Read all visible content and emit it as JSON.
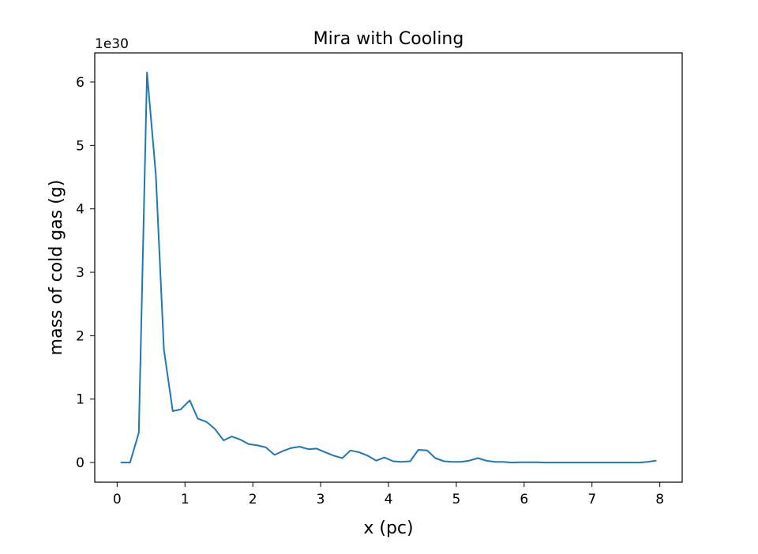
{
  "chart_data": {
    "type": "line",
    "title": "Mira with Cooling",
    "xlabel": "x (pc)",
    "ylabel": "mass of cold gas (g)",
    "y_offset_label": "1e30",
    "y_multiplier": 1e+30,
    "xlim": [
      -0.33,
      8.33
    ],
    "ylim": [
      -0.31,
      6.46
    ],
    "x_ticks": [
      0,
      1,
      2,
      3,
      4,
      5,
      6,
      7,
      8
    ],
    "x_tick_labels": [
      "0",
      "1",
      "2",
      "3",
      "4",
      "5",
      "6",
      "7",
      "8"
    ],
    "y_ticks": [
      0,
      1,
      2,
      3,
      4,
      5,
      6
    ],
    "y_tick_labels": [
      "0",
      "1",
      "2",
      "3",
      "4",
      "5",
      "6"
    ],
    "grid": false,
    "line_color": "#1f77b4",
    "series": [
      {
        "x": [
          0.06,
          0.19,
          0.32,
          0.44,
          0.57,
          0.69,
          0.82,
          0.94,
          1.07,
          1.19,
          1.32,
          1.44,
          1.57,
          1.69,
          1.82,
          1.94,
          2.07,
          2.19,
          2.32,
          2.44,
          2.57,
          2.69,
          2.82,
          2.94,
          3.07,
          3.19,
          3.32,
          3.44,
          3.57,
          3.69,
          3.82,
          3.94,
          4.07,
          4.19,
          4.32,
          4.44,
          4.57,
          4.69,
          4.82,
          4.94,
          5.07,
          5.19,
          5.32,
          5.44,
          5.57,
          5.69,
          5.82,
          5.94,
          6.07,
          6.19,
          6.32,
          6.44,
          6.57,
          6.69,
          6.82,
          6.94,
          7.07,
          7.19,
          7.32,
          7.44,
          7.57,
          7.69,
          7.82,
          7.94
        ],
        "y": [
          0.0,
          0.0,
          0.47,
          6.15,
          4.55,
          1.78,
          0.81,
          0.84,
          0.98,
          0.69,
          0.64,
          0.53,
          0.35,
          0.41,
          0.36,
          0.29,
          0.27,
          0.24,
          0.12,
          0.18,
          0.23,
          0.25,
          0.21,
          0.22,
          0.16,
          0.11,
          0.07,
          0.19,
          0.16,
          0.11,
          0.03,
          0.08,
          0.02,
          0.01,
          0.02,
          0.2,
          0.19,
          0.07,
          0.02,
          0.01,
          0.01,
          0.03,
          0.07,
          0.03,
          0.01,
          0.01,
          0.0,
          0.005,
          0.005,
          0.005,
          0.0,
          0.0,
          0.0,
          0.0,
          0.0,
          0.0,
          0.0,
          0.0,
          0.0,
          0.0,
          0.0,
          0.0,
          0.01,
          0.03
        ]
      }
    ]
  }
}
